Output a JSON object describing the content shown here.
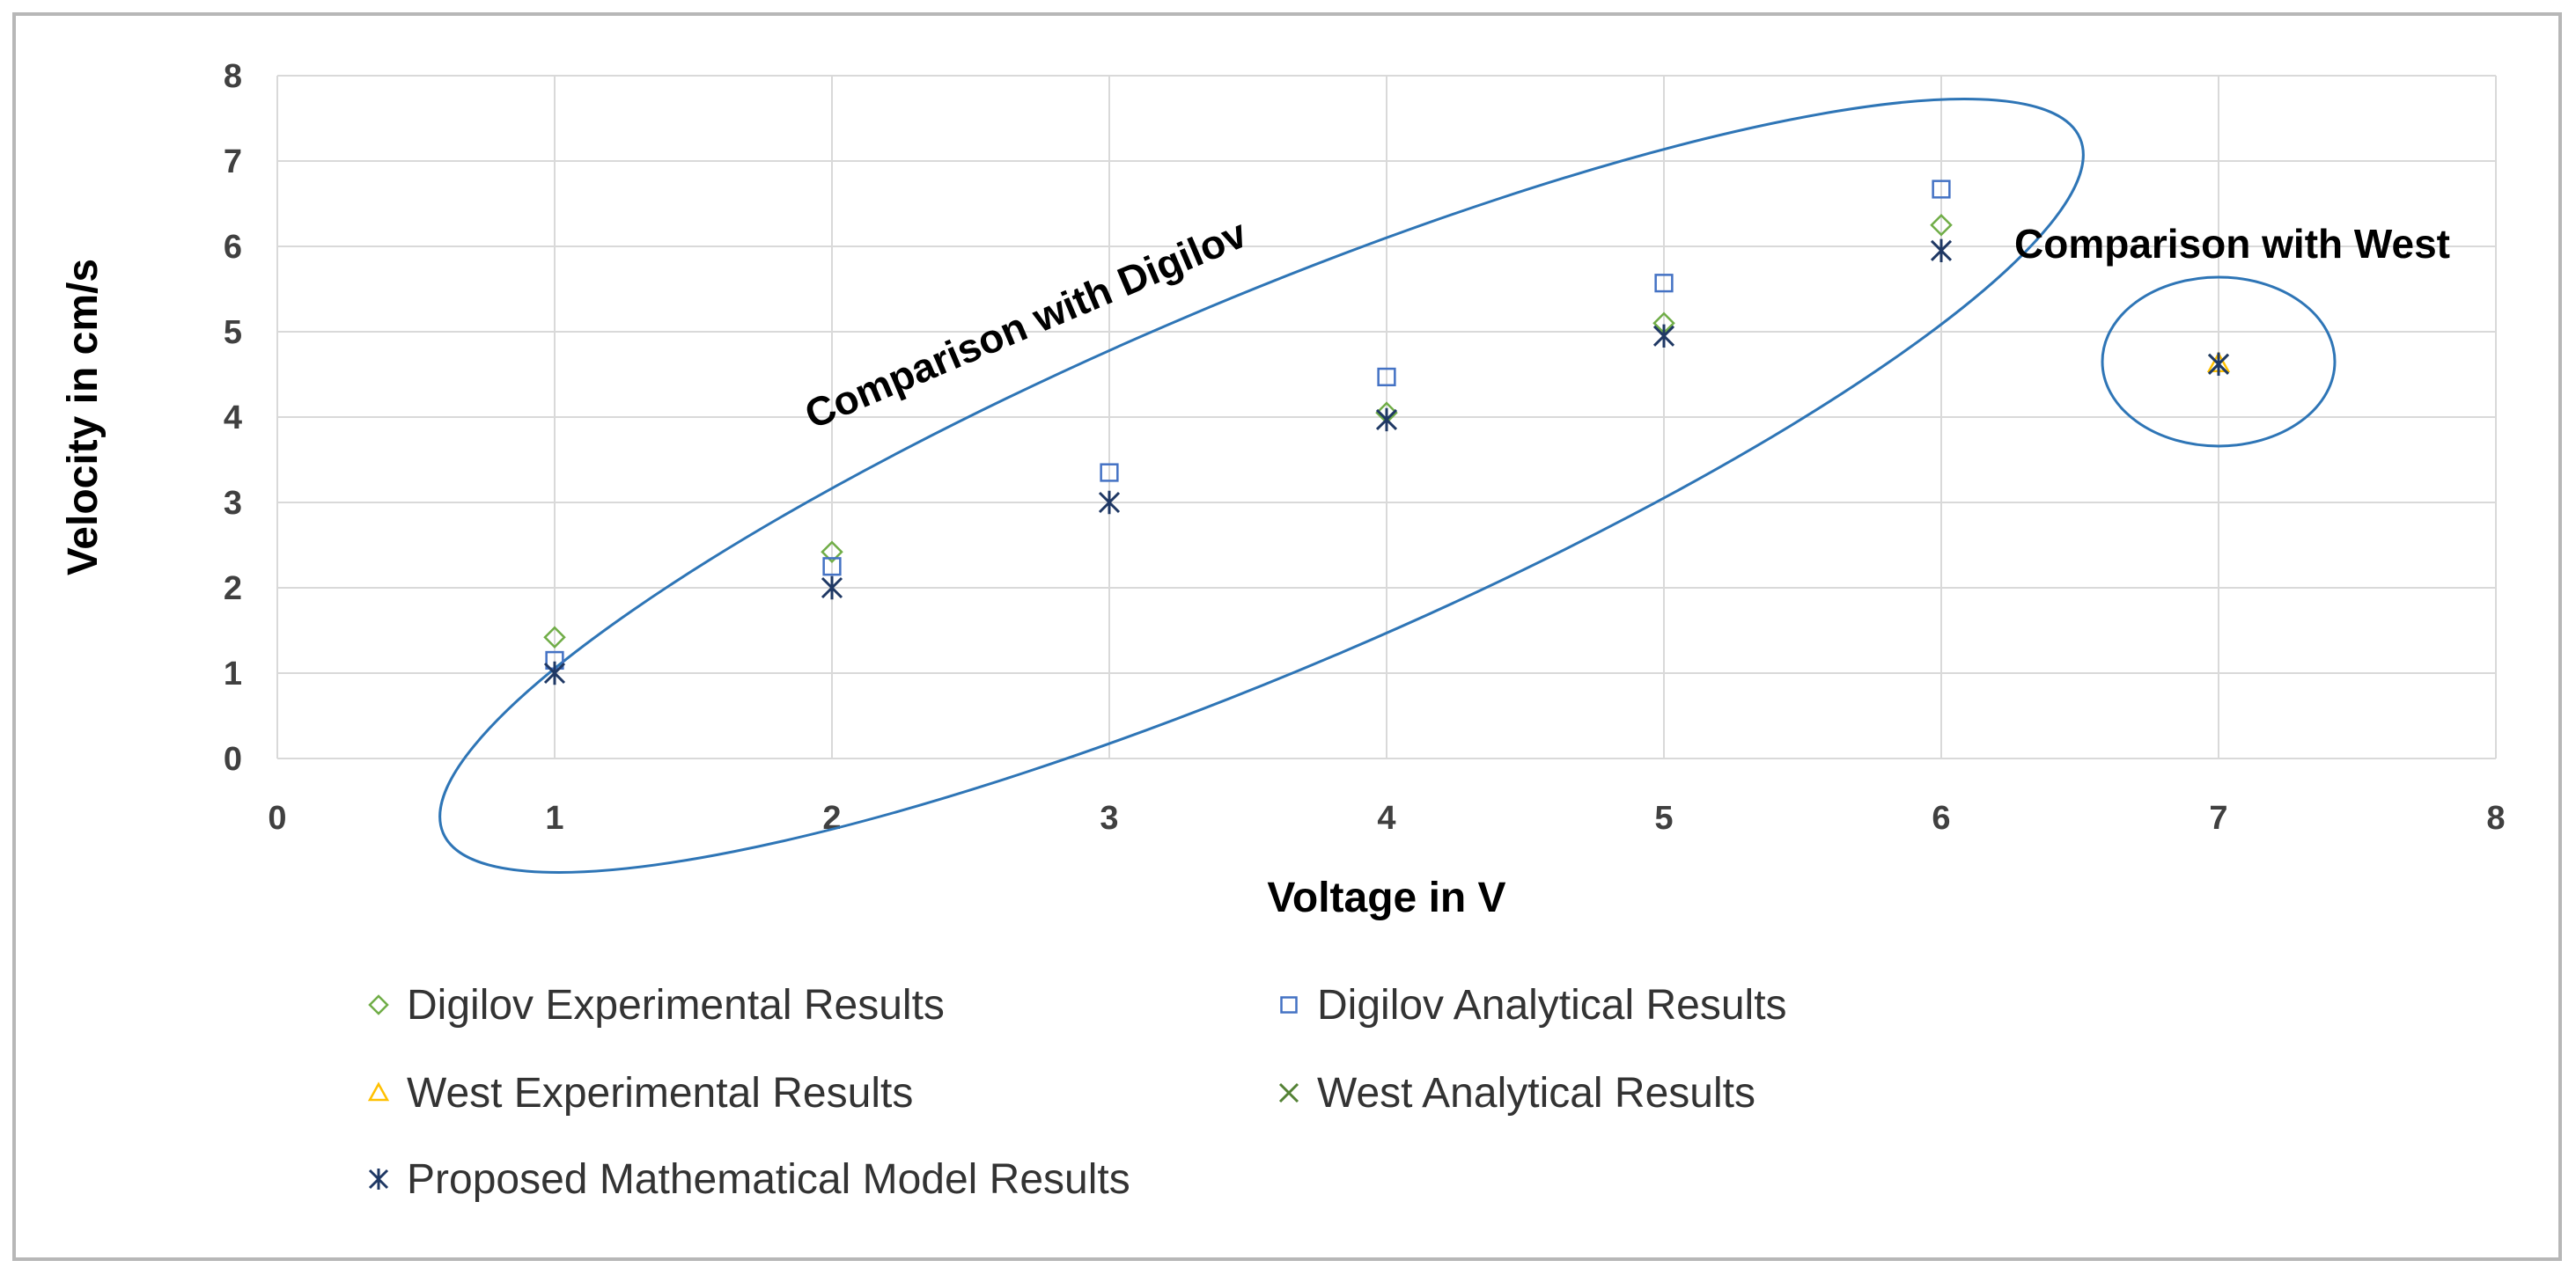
{
  "chart_data": {
    "type": "scatter",
    "title": "",
    "xlabel": "Voltage  in V",
    "ylabel": "Velocity in cm/s",
    "xlim": [
      0,
      8
    ],
    "ylim": [
      0,
      8
    ],
    "xticks": [
      0,
      1,
      2,
      3,
      4,
      5,
      6,
      7,
      8
    ],
    "yticks": [
      0,
      1,
      2,
      3,
      4,
      5,
      6,
      7,
      8
    ],
    "grid": true,
    "legend_position": "bottom",
    "series": [
      {
        "name": "Digilov Experimental Results",
        "marker": "diamond",
        "color": "#70ad47",
        "points": [
          [
            1,
            1.42
          ],
          [
            2,
            2.42
          ],
          [
            4,
            4.05
          ],
          [
            5,
            5.1
          ],
          [
            6,
            6.25
          ]
        ]
      },
      {
        "name": "Digilov Analytical Results",
        "marker": "square",
        "color": "#4472c4",
        "points": [
          [
            1,
            1.15
          ],
          [
            2,
            2.25
          ],
          [
            3,
            3.35
          ],
          [
            4,
            4.47
          ],
          [
            5,
            5.57
          ],
          [
            6,
            6.67
          ]
        ]
      },
      {
        "name": "West Experimental Results",
        "marker": "triangle",
        "color": "#ffc000",
        "points": [
          [
            7,
            4.63
          ]
        ]
      },
      {
        "name": "West Analytical Results",
        "marker": "x",
        "color": "#548235",
        "points": [
          [
            7,
            4.62
          ]
        ]
      },
      {
        "name": "Proposed Mathematical Model Results",
        "marker": "asterisk",
        "color": "#1f3864",
        "points": [
          [
            1,
            1.0
          ],
          [
            2,
            2.0
          ],
          [
            3,
            3.0
          ],
          [
            4,
            3.97
          ],
          [
            5,
            4.95
          ],
          [
            6,
            5.95
          ],
          [
            7,
            4.62
          ]
        ]
      }
    ],
    "annotations": [
      {
        "text": "Comparison with Digilov",
        "target": "Digilov data points 1–6 V"
      },
      {
        "text": "Comparison with West",
        "target": "West data point at 7 V"
      }
    ]
  }
}
